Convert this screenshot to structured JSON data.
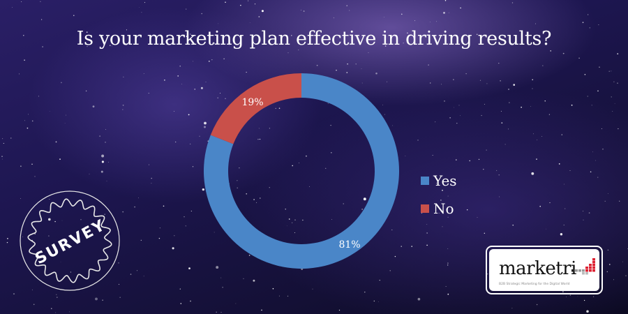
{
  "title": "Is your marketing plan effective in driving results?",
  "chart_data": {
    "type": "pie",
    "variant": "donut",
    "title": "Is your marketing plan effective in driving results?",
    "categories": [
      "Yes",
      "No"
    ],
    "values": [
      81,
      19
    ],
    "labels": [
      "81%",
      "19%"
    ],
    "colors": [
      "#4a86c8",
      "#c9504a"
    ],
    "legend_position": "right",
    "start_angle": "12 o'clock, clockwise"
  },
  "legend": {
    "items": [
      {
        "label": "Yes",
        "color": "#4a86c8"
      },
      {
        "label": "No",
        "color": "#c9504a"
      }
    ]
  },
  "badge": {
    "text": "SURVEY"
  },
  "logo": {
    "word": "marketri",
    "tagline": "B2B Strategic Marketing for the Digital World"
  }
}
